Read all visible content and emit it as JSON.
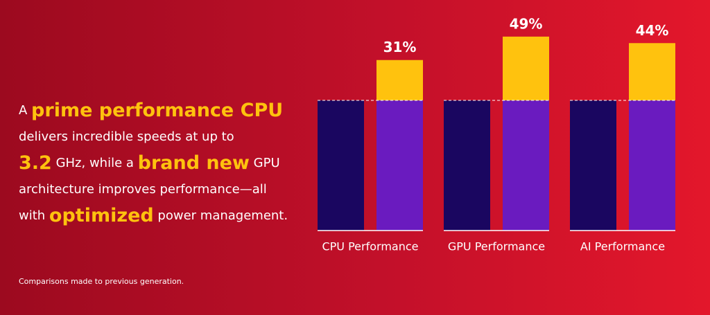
{
  "headline": {
    "lines": [
      [
        {
          "text": "A ",
          "emphasis": false
        },
        {
          "text": "prime performance CPU",
          "emphasis": true
        }
      ],
      [
        {
          "text": "delivers incredible speeds at up to",
          "emphasis": false
        }
      ],
      [
        {
          "text": "3.2",
          "emphasis": true
        },
        {
          "text": " GHz, while a ",
          "emphasis": false
        },
        {
          "text": "brand new",
          "emphasis": true
        },
        {
          "text": " GPU",
          "emphasis": false
        }
      ],
      [
        {
          "text": "architecture improves performance—all",
          "emphasis": false
        }
      ],
      [
        {
          "text": "with ",
          "emphasis": false
        },
        {
          "text": "optimized",
          "emphasis": true
        },
        {
          "text": " power management.",
          "emphasis": false
        }
      ]
    ]
  },
  "footnote": "Comparisons made to previous generation.",
  "chart_data": {
    "type": "bar",
    "categories": [
      "CPU Performance",
      "GPU Performance",
      "AI Performance"
    ],
    "series": [
      {
        "color": "#1a0660",
        "values": [
          100,
          100,
          100
        ]
      },
      {
        "color": "#6a1bbf",
        "values": [
          100,
          100,
          100
        ]
      },
      {
        "color": "#ffc20e",
        "values": [
          31,
          49,
          44
        ],
        "value_labels": [
          "31%",
          "49%",
          "44%"
        ]
      }
    ],
    "stacked": [
      1,
      2
    ],
    "ylim": [
      0,
      150
    ]
  }
}
